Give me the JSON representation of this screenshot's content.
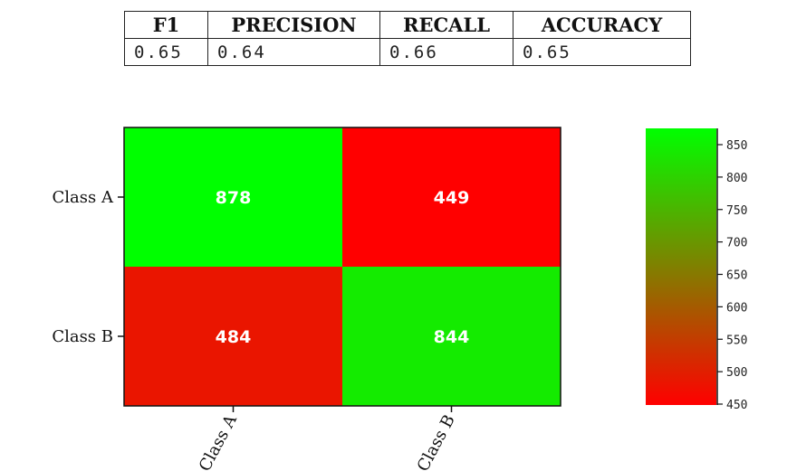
{
  "metrics": {
    "headers": [
      "F1",
      "PRECISION",
      "RECALL",
      "ACCURACY"
    ],
    "values": [
      "0.65",
      "0.64",
      "0.66",
      "0.65"
    ]
  },
  "colors": {
    "low": "#ff0000",
    "high": "#00ff00"
  },
  "chart_data": {
    "type": "heatmap",
    "title": "",
    "xlabel": "",
    "ylabel": "",
    "x_categories": [
      "Class A",
      "Class B"
    ],
    "y_categories": [
      "Class A",
      "Class B"
    ],
    "values": [
      [
        878,
        449
      ],
      [
        484,
        844
      ]
    ],
    "colorbar": {
      "range": [
        449,
        878
      ],
      "ticks": [
        850,
        800,
        750,
        700,
        650,
        600,
        550,
        500,
        450
      ]
    }
  }
}
